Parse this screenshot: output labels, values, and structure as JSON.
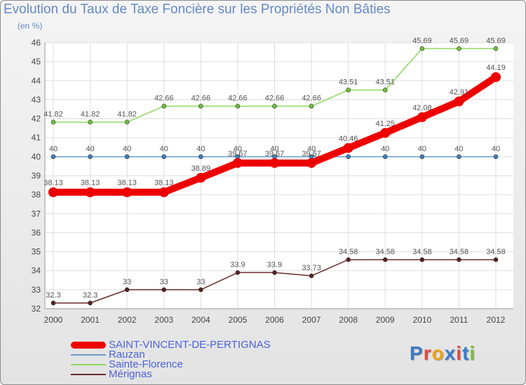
{
  "title": "Evolution du Taux de Taxe Foncière sur les Propriétés Non Bâties",
  "subtitle": "(en %)",
  "logo_text": "Proxiti",
  "chart_data": {
    "type": "line",
    "x": [
      2000,
      2001,
      2002,
      2003,
      2004,
      2005,
      2006,
      2007,
      2008,
      2009,
      2010,
      2011,
      2012
    ],
    "x_tick_labels": [
      "2000",
      "2001",
      "2002",
      "2003",
      "2004",
      "2005",
      "2006",
      "2007",
      "2008",
      "2009",
      "2010",
      "2011",
      "2012"
    ],
    "ylim": [
      32,
      46
    ],
    "y_ticks": [
      32,
      33,
      34,
      35,
      36,
      37,
      38,
      39,
      40,
      41,
      42,
      43,
      44,
      45,
      46
    ],
    "y_tick_labels": [
      "32",
      "33",
      "34",
      "35",
      "36",
      "37",
      "38",
      "39",
      "40",
      "41",
      "42",
      "43",
      "44",
      "45",
      "46"
    ],
    "grid": true,
    "legend_position": "bottom-left",
    "series": [
      {
        "name": "SAINT-VINCENT-DE-PERTIGNAS",
        "color": "#ee0000",
        "marker_color": "#ee0000",
        "thick": true,
        "values": [
          38.13,
          38.13,
          38.13,
          38.13,
          38.89,
          39.67,
          39.67,
          39.67,
          40.46,
          41.25,
          42.08,
          42.91,
          44.19
        ],
        "labels": [
          "38.13",
          "38.13",
          "38.13",
          "38.13",
          "38.89",
          "39.67",
          "39.67",
          "39.67",
          "40.46",
          "41.25",
          "42.08",
          "42.91",
          "44.19"
        ]
      },
      {
        "name": "Rauzan",
        "color": "#6a9ccc",
        "marker_color": "#3f7fbf",
        "thick": false,
        "values": [
          40,
          40,
          40,
          40,
          40,
          40,
          40,
          40,
          40,
          40,
          40,
          40,
          40
        ],
        "labels": [
          "40",
          "40",
          "40",
          "40",
          "40",
          "40",
          "40",
          "40",
          "40",
          "40",
          "40",
          "40",
          "40"
        ]
      },
      {
        "name": "Sainte-Florence",
        "color": "#8ed65c",
        "marker_color": "#6cc23a",
        "thick": false,
        "values": [
          41.82,
          41.82,
          41.82,
          42.66,
          42.66,
          42.66,
          42.66,
          42.66,
          43.51,
          43.51,
          45.69,
          45.69,
          45.69
        ],
        "labels": [
          "41.82",
          "41.82",
          "41.82",
          "42.66",
          "42.66",
          "42.66",
          "42.66",
          "42.66",
          "43.51",
          "43.51",
          "45.69",
          "45.69",
          "45.69"
        ]
      },
      {
        "name": "Mérignas",
        "color": "#6a2b2b",
        "marker_color": "#5a1f1f",
        "thick": false,
        "values": [
          32.3,
          32.3,
          33,
          33,
          33,
          33.9,
          33.9,
          33.73,
          34.58,
          34.58,
          34.58,
          34.58,
          34.58
        ],
        "labels": [
          "32.3",
          "32.3",
          "33",
          "33",
          "33",
          "33.9",
          "33.9",
          "33.73",
          "34.58",
          "34.58",
          "34.58",
          "34.58",
          "34.58"
        ]
      }
    ]
  }
}
